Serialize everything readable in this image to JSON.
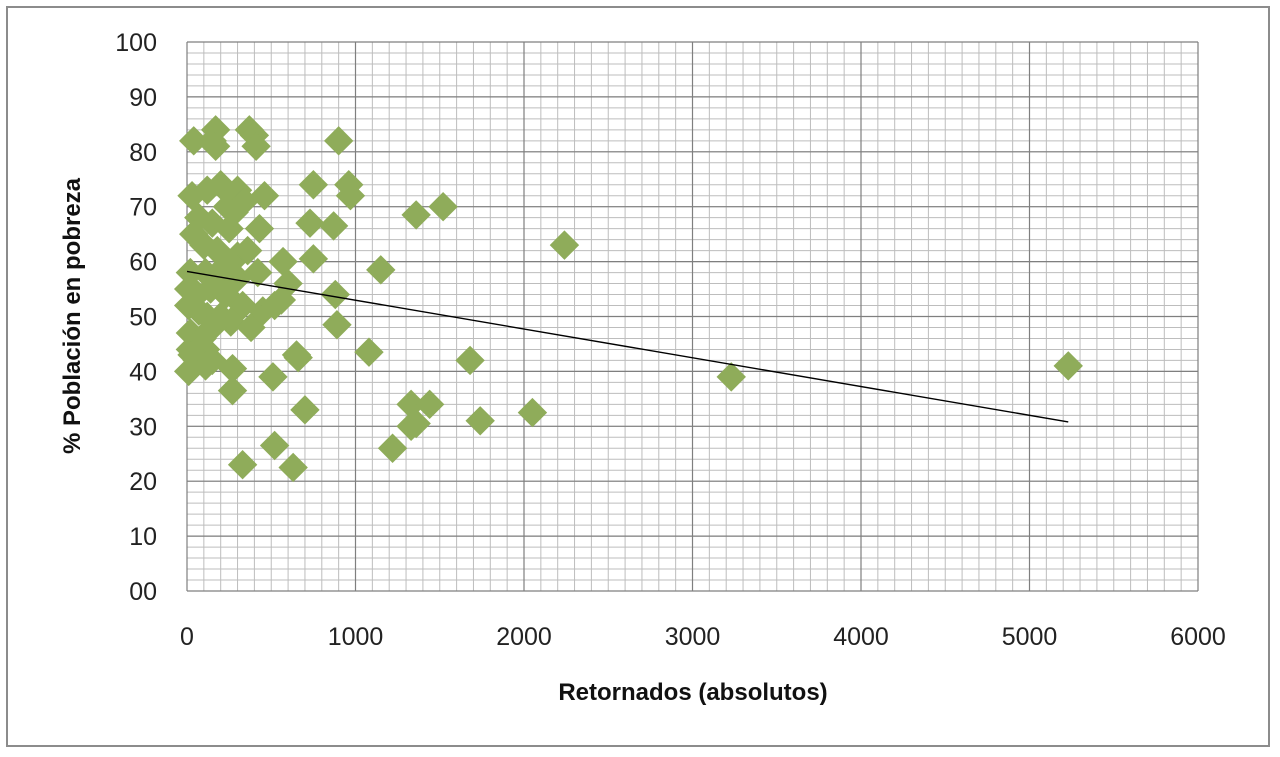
{
  "chart_data": {
    "type": "scatter",
    "title": "",
    "xlabel": "Retornados (absolutos)",
    "ylabel": "% Población en pobreza",
    "xlim": [
      0,
      6000
    ],
    "ylim": [
      0,
      100
    ],
    "x_ticks": [
      "0",
      "1000",
      "2000",
      "3000",
      "4000",
      "5000",
      "6000"
    ],
    "y_ticks": [
      "00",
      "10",
      "20",
      "30",
      "40",
      "50",
      "60",
      "70",
      "80",
      "90",
      "100"
    ],
    "x_minor_step": 100,
    "y_minor_step": 2,
    "grid": true,
    "legend": "none",
    "marker": "diamond",
    "marker_color": "#8fac5a",
    "trendline": {
      "type": "linear",
      "x": [
        0,
        5230
      ],
      "y": [
        58.2,
        30.8
      ],
      "color": "#000000"
    },
    "series": [
      {
        "points": [
          [
            40,
            82
          ],
          [
            170,
            84
          ],
          [
            150,
            82
          ],
          [
            170,
            81
          ],
          [
            370,
            84
          ],
          [
            400,
            83
          ],
          [
            410,
            81
          ],
          [
            900,
            82
          ],
          [
            30,
            72
          ],
          [
            120,
            73
          ],
          [
            200,
            74
          ],
          [
            240,
            70
          ],
          [
            300,
            73
          ],
          [
            340,
            71
          ],
          [
            460,
            72
          ],
          [
            750,
            74
          ],
          [
            960,
            74
          ],
          [
            970,
            72
          ],
          [
            1520,
            70
          ],
          [
            1360,
            68.5
          ],
          [
            70,
            68
          ],
          [
            150,
            67
          ],
          [
            250,
            66
          ],
          [
            280,
            69
          ],
          [
            430,
            66
          ],
          [
            730,
            67
          ],
          [
            870,
            66.5
          ],
          [
            2240,
            63
          ],
          [
            40,
            65
          ],
          [
            100,
            63
          ],
          [
            180,
            62
          ],
          [
            300,
            61
          ],
          [
            360,
            62
          ],
          [
            570,
            60
          ],
          [
            750,
            60.5
          ],
          [
            1150,
            58.5
          ],
          [
            20,
            58
          ],
          [
            110,
            58
          ],
          [
            170,
            57
          ],
          [
            220,
            59
          ],
          [
            300,
            57
          ],
          [
            420,
            58
          ],
          [
            600,
            56
          ],
          [
            880,
            54
          ],
          [
            10,
            55
          ],
          [
            60,
            54
          ],
          [
            140,
            55
          ],
          [
            230,
            54
          ],
          [
            330,
            52
          ],
          [
            450,
            51
          ],
          [
            520,
            52
          ],
          [
            560,
            53
          ],
          [
            10,
            52
          ],
          [
            70,
            51
          ],
          [
            120,
            50
          ],
          [
            200,
            50
          ],
          [
            260,
            49
          ],
          [
            380,
            48
          ],
          [
            890,
            48.5
          ],
          [
            20,
            47
          ],
          [
            90,
            46
          ],
          [
            150,
            48
          ],
          [
            60,
            45
          ],
          [
            110,
            44
          ],
          [
            1080,
            43.5
          ],
          [
            650,
            43
          ],
          [
            660,
            42.5
          ],
          [
            1680,
            42
          ],
          [
            20,
            44
          ],
          [
            30,
            43
          ],
          [
            60,
            42
          ],
          [
            110,
            41
          ],
          [
            150,
            42
          ],
          [
            10,
            40
          ],
          [
            270,
            40.5
          ],
          [
            510,
            39
          ],
          [
            3230,
            39
          ],
          [
            5230,
            41
          ],
          [
            270,
            36.5
          ],
          [
            1330,
            34
          ],
          [
            1440,
            34
          ],
          [
            700,
            33
          ],
          [
            2050,
            32.5
          ],
          [
            1740,
            31
          ],
          [
            1330,
            30
          ],
          [
            1360,
            30.5
          ],
          [
            520,
            26.5
          ],
          [
            1220,
            26
          ],
          [
            330,
            23
          ],
          [
            630,
            22.5
          ]
        ]
      }
    ]
  }
}
